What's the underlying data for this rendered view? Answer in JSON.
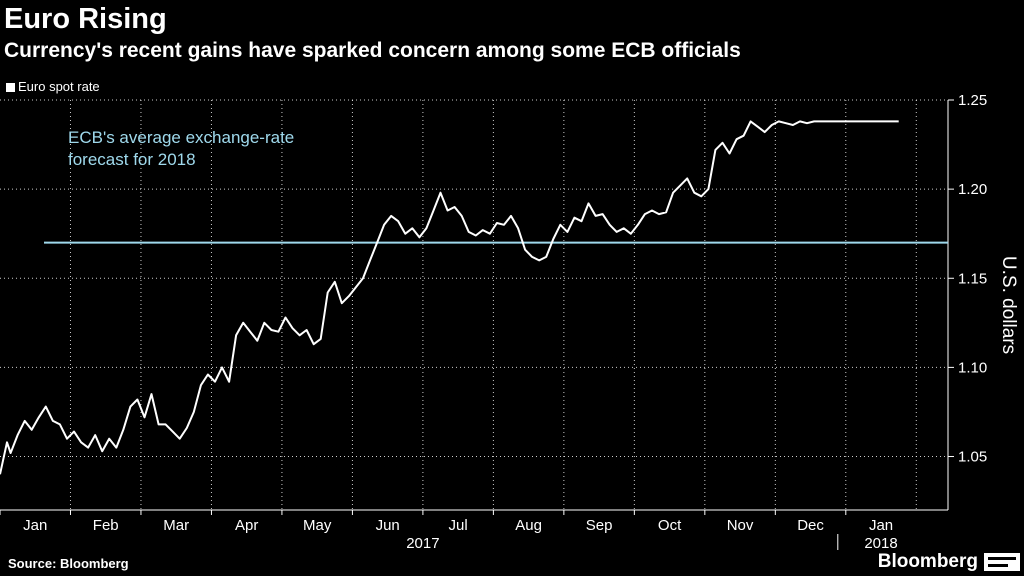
{
  "title": "Euro Rising",
  "subtitle": "Currency's recent gains have sparked concern among some ECB officials",
  "legend": {
    "label": "Euro spot rate"
  },
  "source": "Source: Bloomberg",
  "brand": "Bloomberg",
  "colors": {
    "background": "#000000",
    "series": "#ffffff",
    "reference": "#9fd9ec",
    "grid": "#ffffff"
  },
  "chart_data": {
    "type": "line",
    "title": "Euro Rising",
    "ylabel": "U.S. dollars",
    "xlabel": "",
    "ylim": [
      1.02,
      1.25
    ],
    "xlim": [
      0,
      13.45
    ],
    "y_ticks": [
      1.05,
      1.1,
      1.15,
      1.2,
      1.25
    ],
    "y_tick_labels": [
      "1.05",
      "1.10",
      "1.15",
      "1.20",
      "1.25"
    ],
    "month_ticks": [
      {
        "label": "Jan",
        "pos": 0.5
      },
      {
        "label": "Feb",
        "pos": 1.5
      },
      {
        "label": "Mar",
        "pos": 2.5
      },
      {
        "label": "Apr",
        "pos": 3.5
      },
      {
        "label": "May",
        "pos": 4.5
      },
      {
        "label": "Jun",
        "pos": 5.5
      },
      {
        "label": "Jul",
        "pos": 6.5
      },
      {
        "label": "Aug",
        "pos": 7.5
      },
      {
        "label": "Sep",
        "pos": 8.5
      },
      {
        "label": "Oct",
        "pos": 9.5
      },
      {
        "label": "Nov",
        "pos": 10.5
      },
      {
        "label": "Dec",
        "pos": 11.5
      },
      {
        "label": "Jan",
        "pos": 12.5
      }
    ],
    "year_labels": [
      {
        "label": "2017",
        "pos": 6.0
      },
      {
        "label": "2018",
        "pos": 12.5
      }
    ],
    "year_divider_pos": 12.0,
    "reference_line": {
      "value": 1.17,
      "label": [
        "ECB's average exchange-rate",
        "forecast for 2018"
      ]
    },
    "series": [
      {
        "name": "Euro spot rate",
        "x": [
          0,
          0.1,
          0.15,
          0.25,
          0.35,
          0.45,
          0.55,
          0.65,
          0.75,
          0.85,
          0.95,
          1.05,
          1.15,
          1.25,
          1.35,
          1.45,
          1.55,
          1.65,
          1.75,
          1.85,
          1.95,
          2.05,
          2.15,
          2.25,
          2.35,
          2.45,
          2.55,
          2.65,
          2.75,
          2.85,
          2.95,
          3.05,
          3.15,
          3.25,
          3.35,
          3.45,
          3.55,
          3.65,
          3.75,
          3.85,
          3.95,
          4.05,
          4.15,
          4.25,
          4.35,
          4.45,
          4.55,
          4.65,
          4.75,
          4.85,
          4.95,
          5.05,
          5.15,
          5.25,
          5.35,
          5.45,
          5.55,
          5.65,
          5.75,
          5.85,
          5.95,
          6.05,
          6.15,
          6.25,
          6.35,
          6.45,
          6.55,
          6.65,
          6.75,
          6.85,
          6.95,
          7.05,
          7.15,
          7.25,
          7.35,
          7.45,
          7.55,
          7.65,
          7.75,
          7.85,
          7.95,
          8.05,
          8.15,
          8.25,
          8.35,
          8.45,
          8.55,
          8.65,
          8.75,
          8.85,
          8.95,
          9.05,
          9.15,
          9.25,
          9.35,
          9.45,
          9.55,
          9.65,
          9.75,
          9.85,
          9.95,
          10.05,
          10.15,
          10.25,
          10.35,
          10.45,
          10.55,
          10.65,
          10.75,
          10.85,
          10.95,
          11.05,
          11.15,
          11.25,
          11.35,
          11.45,
          11.55,
          11.65,
          11.75,
          11.85,
          11.95,
          12.05,
          12.15,
          12.25,
          12.35,
          12.45,
          12.55,
          12.65,
          12.75
        ],
        "values": [
          1.04,
          1.058,
          1.052,
          1.062,
          1.07,
          1.065,
          1.072,
          1.078,
          1.07,
          1.068,
          1.06,
          1.064,
          1.058,
          1.055,
          1.062,
          1.053,
          1.06,
          1.055,
          1.065,
          1.078,
          1.082,
          1.072,
          1.085,
          1.068,
          1.068,
          1.064,
          1.06,
          1.066,
          1.075,
          1.09,
          1.096,
          1.092,
          1.1,
          1.092,
          1.118,
          1.125,
          1.12,
          1.115,
          1.125,
          1.121,
          1.12,
          1.128,
          1.122,
          1.118,
          1.121,
          1.113,
          1.116,
          1.142,
          1.148,
          1.136,
          1.14,
          1.145,
          1.15,
          1.16,
          1.17,
          1.18,
          1.185,
          1.182,
          1.175,
          1.178,
          1.173,
          1.178,
          1.188,
          1.198,
          1.188,
          1.19,
          1.185,
          1.176,
          1.174,
          1.177,
          1.175,
          1.181,
          1.18,
          1.185,
          1.178,
          1.166,
          1.162,
          1.16,
          1.162,
          1.172,
          1.18,
          1.176,
          1.184,
          1.182,
          1.192,
          1.185,
          1.186,
          1.18,
          1.176,
          1.178,
          1.175,
          1.18,
          1.186,
          1.188,
          1.186,
          1.187,
          1.198,
          1.202,
          1.206,
          1.198,
          1.196,
          1.2,
          1.222,
          1.226,
          1.22,
          1.228,
          1.23,
          1.238,
          1.235,
          1.232,
          1.236,
          1.238,
          1.237,
          1.236,
          1.238,
          1.237,
          1.238,
          1.238,
          1.238,
          1.238,
          1.238,
          1.238,
          1.238,
          1.238,
          1.238,
          1.238,
          1.238,
          1.238,
          1.238
        ]
      }
    ]
  }
}
